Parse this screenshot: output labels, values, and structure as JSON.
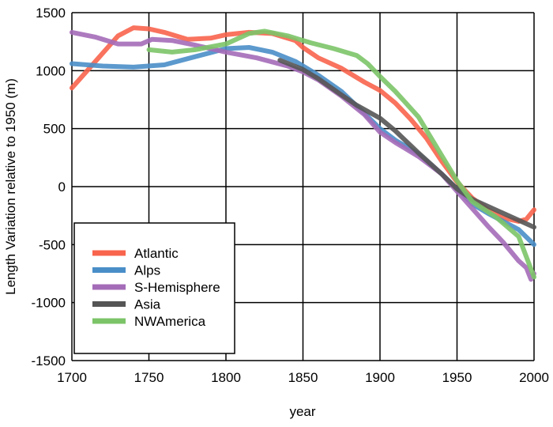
{
  "chart_data": {
    "type": "line",
    "title": "",
    "xlabel": "year",
    "ylabel": "Length Variation relative to 1950 (m)",
    "xlim": [
      1700,
      2000
    ],
    "ylim": [
      -1500,
      1500
    ],
    "xticks": [
      1700,
      1750,
      1800,
      1850,
      1900,
      1950,
      2000
    ],
    "yticks": [
      1500,
      1000,
      500,
      0,
      -500,
      -1000,
      -1500
    ],
    "grid": true,
    "legend_position": "bottom-left",
    "series": [
      {
        "name": "Atlantic",
        "color": "#f8644c",
        "x": [
          1700,
          1710,
          1720,
          1730,
          1740,
          1750,
          1760,
          1775,
          1790,
          1800,
          1815,
          1830,
          1845,
          1850,
          1860,
          1875,
          1890,
          1900,
          1910,
          1920,
          1930,
          1940,
          1950,
          1960,
          1970,
          1980,
          1990,
          1995,
          2000
        ],
        "y": [
          850,
          1000,
          1150,
          1300,
          1370,
          1360,
          1330,
          1270,
          1280,
          1310,
          1330,
          1320,
          1260,
          1200,
          1110,
          1020,
          900,
          830,
          720,
          580,
          420,
          220,
          40,
          -100,
          -200,
          -270,
          -300,
          -280,
          -200
        ]
      },
      {
        "name": "Alps",
        "color": "#4a8ec8",
        "x": [
          1700,
          1720,
          1740,
          1760,
          1780,
          1800,
          1815,
          1830,
          1845,
          1860,
          1875,
          1890,
          1900,
          1910,
          1925,
          1940,
          1950,
          1960,
          1970,
          1980,
          1990,
          2000
        ],
        "y": [
          1060,
          1040,
          1030,
          1050,
          1120,
          1190,
          1200,
          1160,
          1080,
          960,
          820,
          630,
          500,
          400,
          280,
          110,
          -20,
          -150,
          -230,
          -300,
          -370,
          -500
        ]
      },
      {
        "name": "S-Hemisphere",
        "color": "#a46cb8",
        "x": [
          1700,
          1715,
          1730,
          1745,
          1752,
          1765,
          1780,
          1800,
          1820,
          1840,
          1850,
          1860,
          1875,
          1890,
          1900,
          1910,
          1925,
          1940,
          1950,
          1960,
          1970,
          1980,
          1990,
          1995,
          1998,
          2000
        ],
        "y": [
          1330,
          1290,
          1230,
          1230,
          1270,
          1260,
          1220,
          1160,
          1110,
          1040,
          990,
          920,
          780,
          620,
          470,
          380,
          260,
          110,
          -40,
          -190,
          -340,
          -480,
          -640,
          -700,
          -800,
          -750
        ]
      },
      {
        "name": "Asia",
        "color": "#555555",
        "x": [
          1835,
          1850,
          1860,
          1875,
          1885,
          1900,
          1910,
          1925,
          1940,
          1950,
          1960,
          1975,
          1990,
          2000
        ],
        "y": [
          1090,
          1010,
          930,
          790,
          700,
          590,
          480,
          290,
          110,
          -20,
          -110,
          -200,
          -290,
          -350
        ]
      },
      {
        "name": "NWAmerica",
        "color": "#7cc468",
        "x": [
          1750,
          1765,
          1780,
          1800,
          1815,
          1825,
          1840,
          1855,
          1870,
          1885,
          1892,
          1900,
          1910,
          1925,
          1940,
          1950,
          1960,
          1975,
          1990,
          2000
        ],
        "y": [
          1180,
          1160,
          1180,
          1230,
          1320,
          1340,
          1300,
          1240,
          1190,
          1130,
          1060,
          950,
          820,
          600,
          270,
          50,
          -130,
          -260,
          -430,
          -780
        ]
      }
    ]
  }
}
